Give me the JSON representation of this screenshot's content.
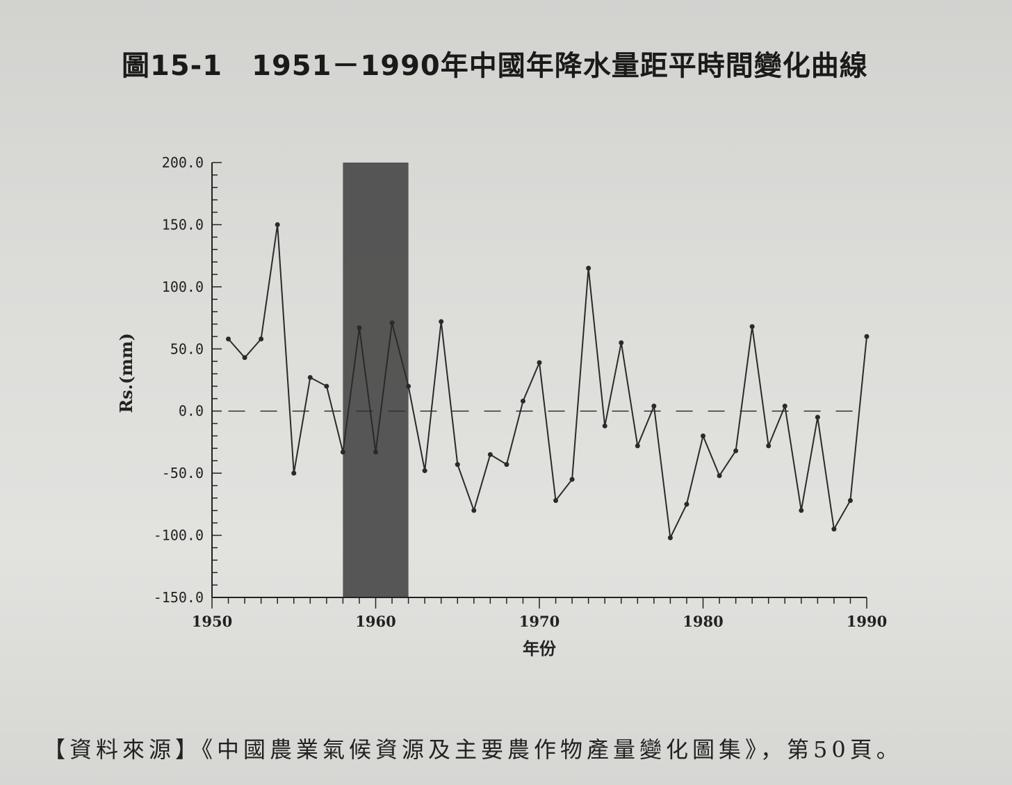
{
  "figure": {
    "number": "圖15-1",
    "title": "1951－1990年中國年降水量距平時間變化曲線"
  },
  "chart_data": {
    "type": "line",
    "title": "1951－1990年中國年降水量距平時間變化曲線",
    "xlabel": "年份",
    "ylabel": "Rs.(mm)",
    "xlim": [
      1950,
      1990
    ],
    "ylim": [
      -150,
      200
    ],
    "x_ticks": [
      1950,
      1960,
      1970,
      1980,
      1990
    ],
    "y_ticks": [
      200,
      150,
      100,
      50,
      0,
      -50,
      -100,
      -150
    ],
    "y_tick_labels": [
      "200.0",
      "150.0",
      "100.0",
      "50.0",
      "0.0",
      "-50.0",
      "-100.0",
      "-150.0"
    ],
    "x_tick_labels": [
      "1950",
      "1960",
      "1970",
      "1980",
      "1990"
    ],
    "shaded_period": [
      1958,
      1962
    ],
    "shade_color": "#4a4a4a",
    "line_color": "#2a2a2a",
    "zero_line_style": "dashed",
    "series": [
      {
        "x": [
          1951,
          1952,
          1953,
          1954,
          1955,
          1956,
          1957,
          1958,
          1959,
          1960,
          1961,
          1962,
          1963,
          1964,
          1965,
          1966,
          1967,
          1968,
          1969,
          1970,
          1971,
          1972,
          1973,
          1974,
          1975,
          1976,
          1977,
          1978,
          1979,
          1980,
          1981,
          1982,
          1983,
          1984,
          1985,
          1986,
          1987,
          1988,
          1989,
          1990
        ],
        "values": [
          58,
          43,
          58,
          150,
          -50,
          27,
          20,
          -33,
          67,
          -33,
          71,
          20,
          -48,
          72,
          -43,
          -80,
          -35,
          -43,
          8,
          39,
          -72,
          -55,
          115,
          -12,
          55,
          -28,
          4,
          -102,
          -75,
          -20,
          -52,
          -32,
          68,
          -28,
          4,
          -80,
          -5,
          -95,
          -72,
          60
        ]
      }
    ]
  },
  "source": {
    "text": "【資料來源】《中國農業氣候資源及主要農作物產量變化圖集》，第50頁。"
  }
}
